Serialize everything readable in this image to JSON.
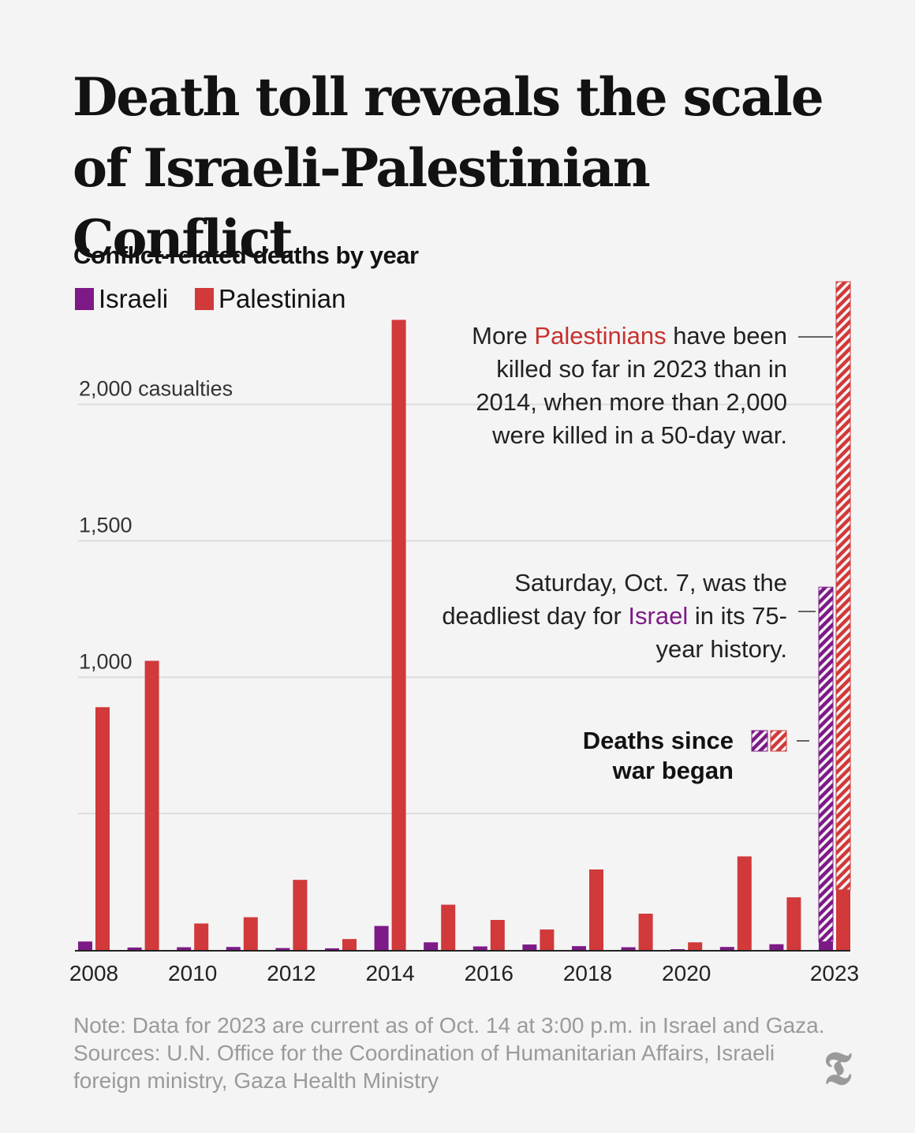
{
  "headline": "Death toll reveals the scale of Israeli-Palestinian Conflict",
  "chart_data": {
    "type": "bar",
    "title": "Conflict-related deaths by year",
    "unit_label": "casualties",
    "ylim": [
      0,
      2450
    ],
    "yticks": [
      {
        "value": 2000,
        "label": "2,000 casualties"
      },
      {
        "value": 1500,
        "label": "1,500"
      },
      {
        "value": 1000,
        "label": "1,000"
      },
      {
        "value": 500,
        "label": ""
      }
    ],
    "categories": [
      "2008",
      "2009",
      "2010",
      "2011",
      "2012",
      "2013",
      "2014",
      "2015",
      "2016",
      "2017",
      "2018",
      "2019",
      "2020",
      "2021",
      "2022",
      "2023"
    ],
    "xtick_labels": [
      "2008",
      "",
      "2010",
      "",
      "2012",
      "",
      "2014",
      "",
      "2016",
      "",
      "2018",
      "",
      "2020",
      "",
      "",
      "2023"
    ],
    "legend_position": "top-left",
    "series": [
      {
        "name": "Israeli",
        "color": "#7d1a87",
        "values": [
          31,
          9,
          10,
          11,
          7,
          6,
          88,
          28,
          13,
          20,
          14,
          10,
          3,
          11,
          21,
          1330
        ]
      },
      {
        "name": "Palestinian",
        "color": "#d1393a",
        "values": [
          890,
          1060,
          97,
          120,
          257,
          40,
          2310,
          166,
          110,
          75,
          295,
          133,
          28,
          343,
          193,
          2450
        ]
      }
    ],
    "hatched_since_war": {
      "label": "Deaths since war began",
      "Israeli": 1300,
      "Palestinian": 2230
    },
    "annotations": [
      {
        "text_parts": [
          "More ",
          "Palestinians",
          " have been killed so far in 2023 than in 2014, when more than 2,000 were killed in a 50-day war."
        ]
      },
      {
        "text_parts": [
          "Saturday, Oct. 7, was the deadliest day for ",
          "Israel",
          " in its 75-year history."
        ]
      }
    ]
  },
  "annotation_bold": "Deaths since war began",
  "note": "Note: Data for 2023 are current as of Oct. 14 at 3:00 p.m. in Israel and Gaza. Sources: U.N. Office for the Coordination of Humanitarian Affairs, Israeli foreign ministry, Gaza Health Ministry",
  "logo_icon": "nyt-logo-icon"
}
